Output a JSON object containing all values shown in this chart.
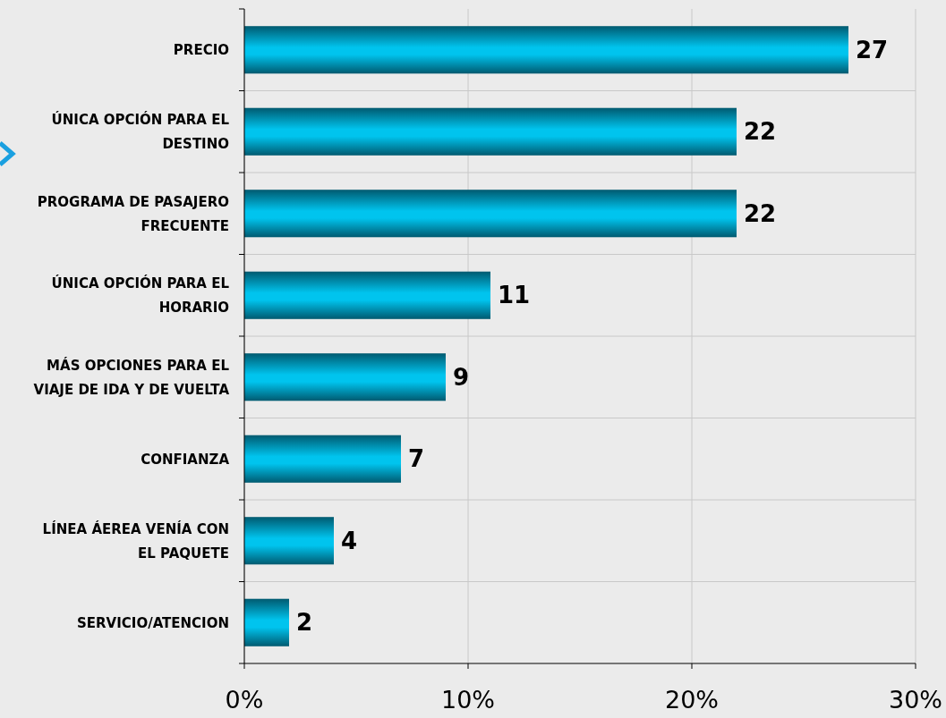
{
  "chart_data": {
    "type": "bar",
    "orientation": "horizontal",
    "categories": [
      "PRECIO",
      "ÚNICA OPCIÓN PARA EL DESTINO",
      "PROGRAMA DE PASAJERO FRECUENTE",
      "ÚNICA OPCIÓN PARA EL HORARIO",
      "MÁS OPCIONES PARA EL VIAJE DE IDA Y DE VUELTA",
      "CONFIANZA",
      "LÍNEA ÁEREA VENÍA CON EL PAQUETE",
      "SERVICIO/ATENCION"
    ],
    "values": [
      27,
      22,
      22,
      11,
      9,
      7,
      4,
      2
    ],
    "color": "#00c4ee",
    "xlim": [
      0,
      30
    ],
    "xticks": [
      {
        "value": 0,
        "label": "0%"
      },
      {
        "value": 10,
        "label": "10%"
      },
      {
        "value": 20,
        "label": "20%"
      },
      {
        "value": 30,
        "label": "30%"
      }
    ],
    "grid": true,
    "data_labels": true
  }
}
